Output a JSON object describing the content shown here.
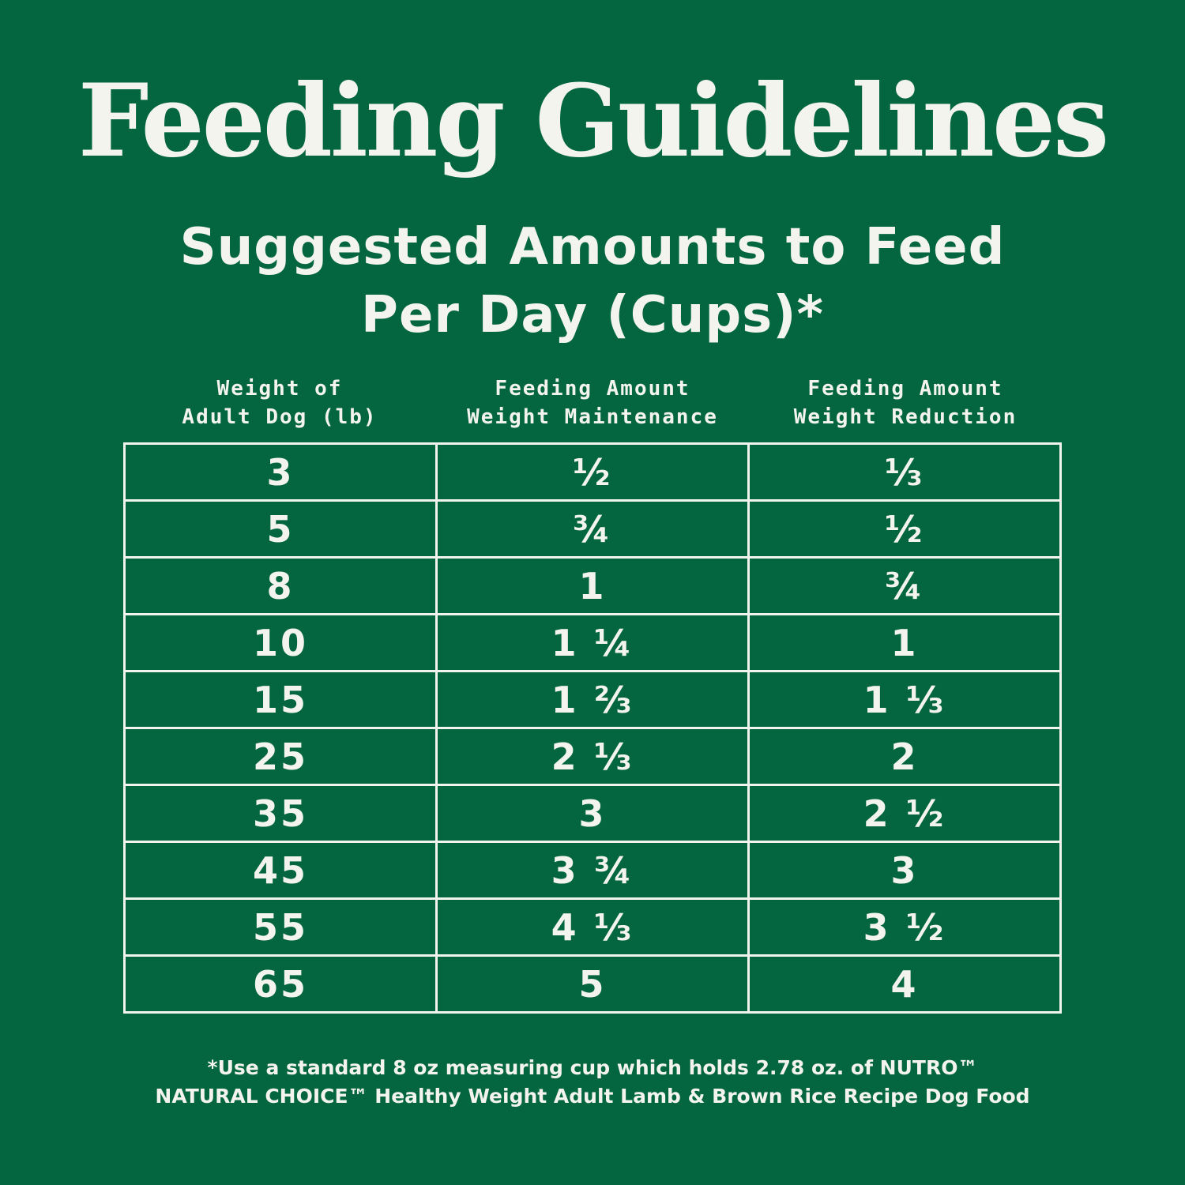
{
  "title": "Feeding Guidelines",
  "subtitle": {
    "line1": "Suggested Amounts to Feed",
    "line2": "Per Day (Cups)*"
  },
  "columns": [
    {
      "line1": "Weight of",
      "line2": "Adult Dog (lb)"
    },
    {
      "line1": "Feeding Amount",
      "line2": "Weight Maintenance"
    },
    {
      "line1": "Feeding Amount",
      "line2": "Weight Reduction"
    }
  ],
  "rows": [
    [
      "3",
      "½",
      "⅓"
    ],
    [
      "5",
      "¾",
      "½"
    ],
    [
      "8",
      "1",
      "¾"
    ],
    [
      "10",
      "1 ¼",
      "1"
    ],
    [
      "15",
      "1 ⅔",
      "1 ⅓"
    ],
    [
      "25",
      "2 ⅓",
      "2"
    ],
    [
      "35",
      "3",
      "2 ½"
    ],
    [
      "45",
      "3 ¾",
      "3"
    ],
    [
      "55",
      "4 ⅓",
      "3 ½"
    ],
    [
      "65",
      "5",
      "4"
    ]
  ],
  "footnote": {
    "line1": "*Use a standard 8 oz measuring cup which holds 2.78 oz. of NUTRO™",
    "line2": "NATURAL CHOICE™ Healthy Weight Adult Lamb & Brown Rice Recipe Dog Food"
  },
  "colors": {
    "background": "#046641",
    "foreground": "#f4f4ee"
  }
}
